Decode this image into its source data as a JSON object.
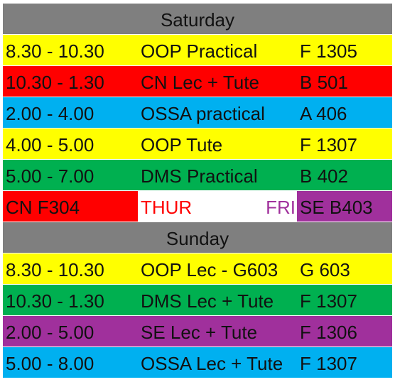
{
  "colors": {
    "header_gray": "#7f7f7f",
    "yellow": "#ffff00",
    "red": "#ff0000",
    "blue": "#00b0f0",
    "green": "#00b050",
    "purple": "#a0309c",
    "thur_text": "#ff0000",
    "fri_text": "#a0309c"
  },
  "saturday": {
    "title": "Saturday",
    "rows": [
      {
        "time": "8.30 - 10.30",
        "subject": "OOP Practical",
        "room": " F 1305",
        "color": "#ffff00"
      },
      {
        "time": "10.30 - 1.30",
        "subject": "CN Lec + Tute",
        "room": "B 501",
        "color": "#ff0000"
      },
      {
        "time": "2.00  - 4.00",
        "subject": "OSSA practical",
        "room": "A 406",
        "color": "#00b0f0"
      },
      {
        "time": "4.00  - 5.00",
        "subject": "OOP Tute",
        "room": "F 1307",
        "color": "#ffff00"
      },
      {
        "time": " 5.00 - 7.00",
        "subject": "DMS Practical",
        "room": "B 402",
        "color": "#00b050"
      }
    ]
  },
  "weekday_row": {
    "left_text": "CN  F304",
    "thur": "THUR",
    "fri": "FRI",
    "right_text": "SE B403"
  },
  "sunday": {
    "title": "Sunday",
    "rows": [
      {
        "time": "8.30 - 10.30",
        "subject": "OOP Lec - G603",
        "room": " G 603",
        "color": "#ffff00"
      },
      {
        "time": "10.30 - 1.30",
        "subject": "DMS Lec + Tute",
        "room": "F 1307",
        "color": "#00b050"
      },
      {
        "time": "2.00 - 5.00",
        "subject": "SE Lec + Tute",
        "room": "F 1306",
        "color": "#a0309c"
      },
      {
        "time": "5.00 - 8.00",
        "subject": "OSSA Lec + Tute",
        "room": "F 1307",
        "color": "#00b0f0"
      }
    ]
  }
}
